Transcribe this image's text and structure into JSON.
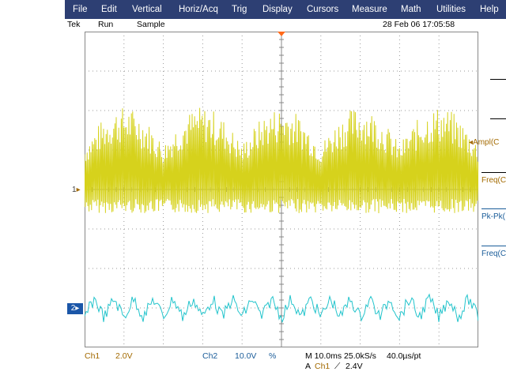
{
  "menu": [
    "File",
    "Edit",
    "Vertical",
    "Horiz/Acq",
    "Trig",
    "Display",
    "Cursors",
    "Measure",
    "Math",
    "Utilities",
    "Help"
  ],
  "status": {
    "brand": "Tek",
    "state": "Run",
    "mode": "Sample",
    "datetime": "28 Feb 06 17:05:58"
  },
  "markers": {
    "ch1": "1",
    "ch2": "2"
  },
  "measurements": [
    "Ampl(C",
    "Freq(C",
    "Pk-Pk(",
    "Freq(C:"
  ],
  "readout": {
    "ch1_label": "Ch1",
    "ch1_scale": "2.0V",
    "ch2_label": "Ch2",
    "ch2_scale": "10.0V",
    "ch2_coupling": "%",
    "timebase": "M 10.0ms 25.0kS/s",
    "resolution": "40.0µs/pt",
    "trigger_prefix": "A",
    "trigger_source": "Ch1",
    "trigger_slope": "⟋",
    "trigger_level": "2.4V"
  },
  "colors": {
    "ch1": "#d6d21c",
    "ch2": "#22c4cc",
    "menu_bg": "#2d3f73",
    "grid": "#9a9a9a",
    "trigger_marker": "#ff6a1a",
    "ch2_marker_bg": "#1b56a8",
    "measure_ch1": "#a36a00",
    "measure_ch2": "#1a5c99"
  }
}
